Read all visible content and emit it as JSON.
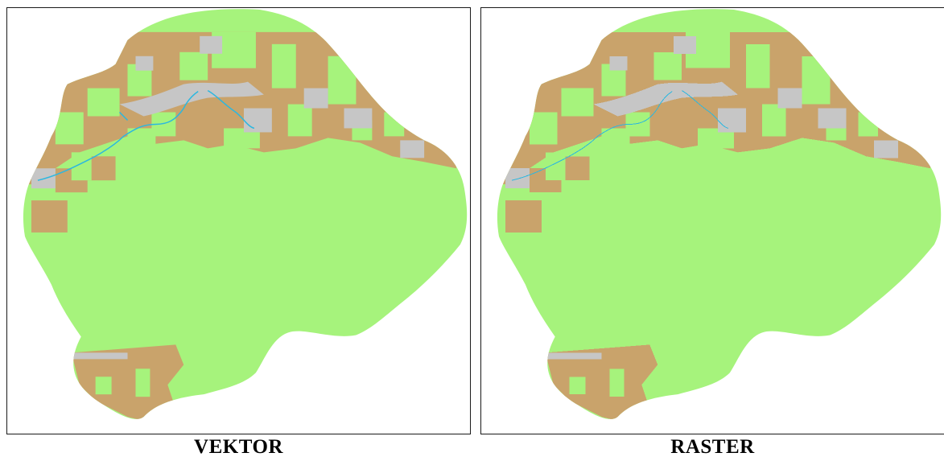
{
  "panels": [
    {
      "id": "vector",
      "caption": "VEKTOR",
      "rendering": "vector"
    },
    {
      "id": "raster",
      "caption": "RASTER",
      "rendering": "raster"
    }
  ],
  "map": {
    "colors": {
      "green": "#a6f37c",
      "brown": "#c9a36b",
      "gray": "#c6c6c6",
      "water": "#2bb7e0",
      "border": "#1a1a1a"
    }
  }
}
